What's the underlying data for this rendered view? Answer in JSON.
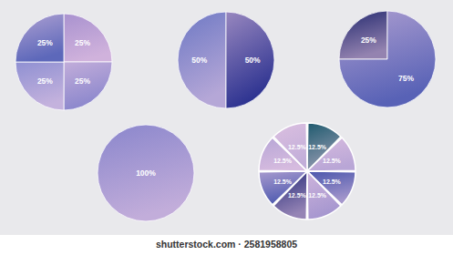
{
  "chart_data": [
    {
      "type": "pie",
      "values": [
        25,
        25,
        25,
        25
      ],
      "value_labels": [
        "25%",
        "25%",
        "25%",
        "25%"
      ],
      "colors": [
        "#a992cf",
        "#8a86cc",
        "#8f90d2",
        "#5d68ba"
      ],
      "data_labels": true
    },
    {
      "type": "pie",
      "values": [
        50,
        50
      ],
      "value_labels": [
        "50%",
        "50%"
      ],
      "colors": [
        "#6d78c4",
        "#2c3290"
      ],
      "data_labels": true
    },
    {
      "type": "pie",
      "values": [
        25,
        75
      ],
      "value_labels": [
        "25%",
        "75%"
      ],
      "colors": [
        "#23296f",
        "#5862b6"
      ],
      "data_labels": true
    },
    {
      "type": "pie",
      "values": [
        100
      ],
      "value_labels": [
        "100%"
      ],
      "colors": [
        "#8a86cc"
      ],
      "data_labels": true
    },
    {
      "type": "pie",
      "values": [
        12.5,
        12.5,
        12.5,
        12.5,
        12.5,
        12.5,
        12.5,
        12.5
      ],
      "value_labels": [
        "12.5%",
        "12.5%",
        "12.5%",
        "12.5%",
        "12.5%",
        "12.5%",
        "12.5%",
        "12.5%"
      ],
      "colors": [
        "#1e5a6e",
        "#b9a6d6",
        "#4a56ac",
        "#a596cf",
        "#252a78",
        "#4f5bb0",
        "#b7a6d6",
        "#c2aed9"
      ],
      "data_labels": true
    }
  ],
  "watermark": "shutterstock.com · 2581958805"
}
